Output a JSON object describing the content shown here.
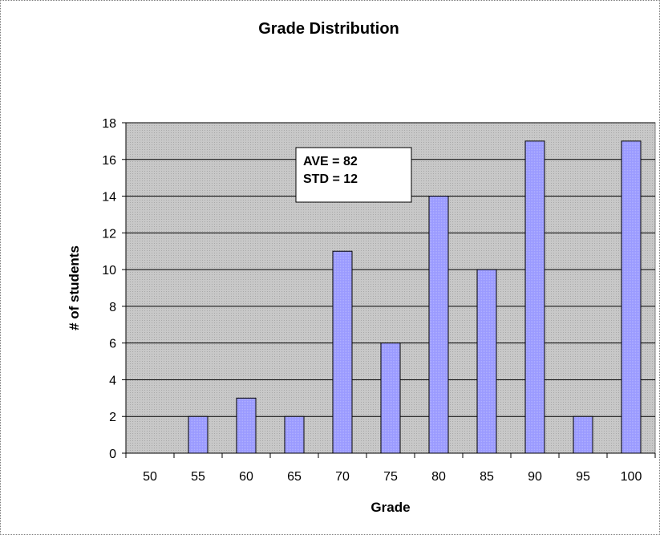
{
  "chart_data": {
    "type": "bar",
    "title": "Grade Distribution",
    "xlabel": "Grade",
    "ylabel": "# of students",
    "categories": [
      "50",
      "55",
      "60",
      "65",
      "70",
      "75",
      "80",
      "85",
      "90",
      "95",
      "100"
    ],
    "values": [
      0,
      2,
      3,
      2,
      11,
      6,
      14,
      10,
      17,
      2,
      17
    ],
    "ylim": [
      0,
      18
    ],
    "yticks": [
      0,
      2,
      4,
      6,
      8,
      10,
      12,
      14,
      16,
      18
    ],
    "grid": true,
    "legend": "none",
    "annotation": {
      "line1": "AVE = 82",
      "line2": "STD = 12"
    },
    "colors": {
      "bar_fill": "#9999ff",
      "bar_stroke": "#000000",
      "plot_bg": "#c0c0c0",
      "grid": "#000000"
    }
  }
}
